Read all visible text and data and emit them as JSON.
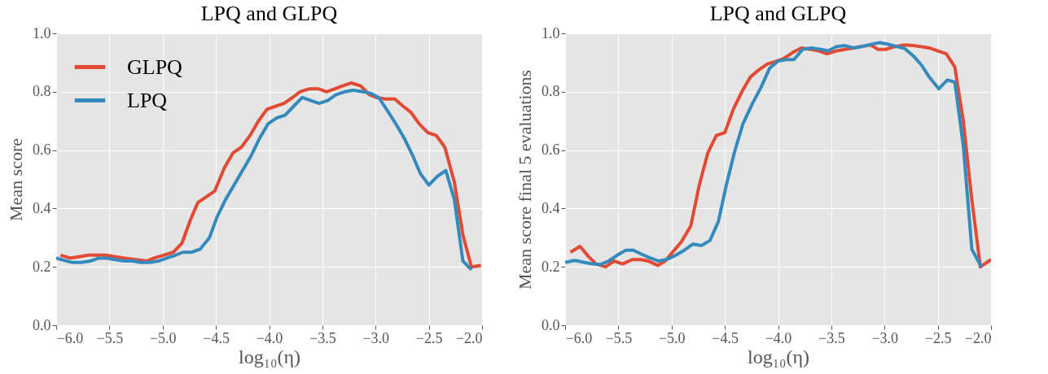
{
  "chart_data": [
    {
      "type": "line",
      "title": "LPQ and GLPQ",
      "xlabel": "log₁₀(η)",
      "ylabel": "Mean score",
      "legend": "top left",
      "grid": true,
      "line_style": "solid",
      "marker": "none",
      "xlim": [
        -6,
        -2
      ],
      "ylim": [
        0,
        1
      ],
      "xticks": [
        {
          "value": -6,
          "label": "−6.0"
        },
        {
          "value": -5.5,
          "label": "−5.5"
        },
        {
          "value": -5,
          "label": "−5.0"
        },
        {
          "value": -4.5,
          "label": "−4.5"
        },
        {
          "value": -4,
          "label": "−4.0"
        },
        {
          "value": -3.5,
          "label": "−3.5"
        },
        {
          "value": -3,
          "label": "−3.0"
        },
        {
          "value": -2.5,
          "label": "−2.5"
        },
        {
          "value": -2,
          "label": "−2.0"
        }
      ],
      "yticks": [
        {
          "value": 0,
          "label": "0.0"
        },
        {
          "value": 0.2,
          "label": "0.2"
        },
        {
          "value": 0.4,
          "label": "0.4"
        },
        {
          "value": 0.6,
          "label": "0.6"
        },
        {
          "value": 0.8,
          "label": "0.8"
        },
        {
          "value": 1,
          "label": "1.0"
        }
      ],
      "series": [
        {
          "name": "GLPQ",
          "color": "#e24a33",
          "x": [
            -5.96,
            -5.87,
            -5.69,
            -5.54,
            -5.36,
            -5.15,
            -5.08,
            -4.99,
            -4.9,
            -4.82,
            -4.74,
            -4.67,
            -4.59,
            -4.51,
            -4.42,
            -4.34,
            -4.26,
            -4.18,
            -4.1,
            -4.02,
            -3.94,
            -3.86,
            -3.78,
            -3.71,
            -3.62,
            -3.54,
            -3.46,
            -3.38,
            -3.31,
            -3.23,
            -3.14,
            -3.06,
            -2.99,
            -2.91,
            -2.82,
            -2.74,
            -2.67,
            -2.59,
            -2.51,
            -2.43,
            -2.35,
            -2.26,
            -2.18,
            -2.1,
            -2.01
          ],
          "values": [
            0.24,
            0.23,
            0.24,
            0.24,
            0.23,
            0.22,
            0.23,
            0.24,
            0.25,
            0.28,
            0.36,
            0.42,
            0.44,
            0.46,
            0.54,
            0.59,
            0.61,
            0.65,
            0.7,
            0.74,
            0.75,
            0.76,
            0.78,
            0.8,
            0.81,
            0.81,
            0.8,
            0.81,
            0.82,
            0.83,
            0.82,
            0.79,
            0.78,
            0.775,
            0.775,
            0.75,
            0.73,
            0.69,
            0.66,
            0.65,
            0.61,
            0.49,
            0.31,
            0.2,
            0.205
          ]
        },
        {
          "name": "LPQ",
          "color": "#348abd",
          "x": [
            -6,
            -5.85,
            -5.76,
            -5.68,
            -5.6,
            -5.53,
            -5.36,
            -5.28,
            -5.21,
            -5.12,
            -5.04,
            -4.96,
            -4.88,
            -4.81,
            -4.73,
            -4.65,
            -4.56,
            -4.49,
            -4.41,
            -4.33,
            -4.25,
            -4.17,
            -4.09,
            -4.01,
            -3.93,
            -3.85,
            -3.77,
            -3.69,
            -3.61,
            -3.53,
            -3.45,
            -3.37,
            -3.29,
            -3.21,
            -3.12,
            -3.05,
            -2.97,
            -2.88,
            -2.81,
            -2.73,
            -2.65,
            -2.58,
            -2.5,
            -2.42,
            -2.34,
            -2.26,
            -2.18,
            -2.1
          ],
          "values": [
            0.23,
            0.215,
            0.215,
            0.22,
            0.23,
            0.23,
            0.22,
            0.22,
            0.215,
            0.215,
            0.22,
            0.23,
            0.24,
            0.25,
            0.25,
            0.26,
            0.3,
            0.37,
            0.43,
            0.48,
            0.53,
            0.58,
            0.64,
            0.69,
            0.71,
            0.72,
            0.75,
            0.78,
            0.77,
            0.76,
            0.77,
            0.79,
            0.8,
            0.805,
            0.8,
            0.795,
            0.78,
            0.73,
            0.69,
            0.64,
            0.58,
            0.52,
            0.48,
            0.51,
            0.53,
            0.43,
            0.22,
            0.19
          ]
        }
      ]
    },
    {
      "type": "line",
      "title": "LPQ and GLPQ",
      "xlabel": "log₁₀(η)",
      "ylabel": "Mean score final 5 evaluations",
      "legend": "top left",
      "grid": true,
      "line_style": "solid",
      "marker": "none",
      "xlim": [
        -6,
        -2
      ],
      "ylim": [
        0,
        1
      ],
      "xticks": [
        {
          "value": -6,
          "label": "−6.0"
        },
        {
          "value": -5.5,
          "label": "−5.5"
        },
        {
          "value": -5,
          "label": "−5.0"
        },
        {
          "value": -4.5,
          "label": "−4.5"
        },
        {
          "value": -4,
          "label": "−4.0"
        },
        {
          "value": -3.5,
          "label": "−3.5"
        },
        {
          "value": -3,
          "label": "−3.0"
        },
        {
          "value": -2.5,
          "label": "−2.5"
        },
        {
          "value": -2,
          "label": "−2.0"
        }
      ],
      "yticks": [
        {
          "value": 0,
          "label": "0.0"
        },
        {
          "value": 0.2,
          "label": "0.2"
        },
        {
          "value": 0.4,
          "label": "0.4"
        },
        {
          "value": 0.6,
          "label": "0.6"
        },
        {
          "value": 0.8,
          "label": "0.8"
        },
        {
          "value": 1,
          "label": "1.0"
        }
      ],
      "series": [
        {
          "name": "GLPQ",
          "color": "#e24a33",
          "x": [
            -5.95,
            -5.86,
            -5.78,
            -5.71,
            -5.62,
            -5.54,
            -5.46,
            -5.37,
            -5.29,
            -5.22,
            -5.13,
            -5.06,
            -4.98,
            -4.91,
            -4.82,
            -4.74,
            -4.66,
            -4.58,
            -4.5,
            -4.42,
            -4.34,
            -4.26,
            -4.18,
            -4.1,
            -4.01,
            -3.94,
            -3.86,
            -3.78,
            -3.69,
            -3.62,
            -3.54,
            -3.45,
            -3.37,
            -3.29,
            -3.22,
            -3.13,
            -3.06,
            -2.99,
            -2.9,
            -2.82,
            -2.73,
            -2.65,
            -2.58,
            -2.5,
            -2.42,
            -2.34,
            -2.26,
            -2.18,
            -2.1,
            -2
          ],
          "values": [
            0.25,
            0.27,
            0.235,
            0.21,
            0.2,
            0.22,
            0.21,
            0.225,
            0.225,
            0.22,
            0.205,
            0.22,
            0.255,
            0.285,
            0.34,
            0.48,
            0.59,
            0.65,
            0.66,
            0.74,
            0.8,
            0.85,
            0.875,
            0.895,
            0.905,
            0.915,
            0.935,
            0.95,
            0.945,
            0.94,
            0.93,
            0.94,
            0.945,
            0.95,
            0.955,
            0.96,
            0.945,
            0.945,
            0.955,
            0.96,
            0.958,
            0.954,
            0.95,
            0.94,
            0.93,
            0.885,
            0.7,
            0.43,
            0.2,
            0.225
          ]
        },
        {
          "name": "LPQ",
          "color": "#348abd",
          "x": [
            -6,
            -5.91,
            -5.82,
            -5.74,
            -5.67,
            -5.59,
            -5.51,
            -5.43,
            -5.36,
            -5.28,
            -5.2,
            -5.12,
            -5.04,
            -4.96,
            -4.88,
            -4.8,
            -4.72,
            -4.64,
            -4.56,
            -4.49,
            -4.41,
            -4.33,
            -4.24,
            -4.16,
            -4.08,
            -4,
            -3.92,
            -3.85,
            -3.77,
            -3.69,
            -3.6,
            -3.53,
            -3.45,
            -3.37,
            -3.29,
            -3.21,
            -3.13,
            -3.05,
            -2.97,
            -2.89,
            -2.81,
            -2.73,
            -2.65,
            -2.58,
            -2.49,
            -2.41,
            -2.34,
            -2.26,
            -2.18,
            -2.09
          ],
          "values": [
            0.215,
            0.222,
            0.215,
            0.21,
            0.208,
            0.22,
            0.24,
            0.257,
            0.257,
            0.243,
            0.23,
            0.22,
            0.226,
            0.24,
            0.257,
            0.278,
            0.273,
            0.29,
            0.356,
            0.474,
            0.592,
            0.69,
            0.76,
            0.815,
            0.88,
            0.905,
            0.91,
            0.91,
            0.945,
            0.95,
            0.945,
            0.94,
            0.955,
            0.958,
            0.95,
            0.955,
            0.962,
            0.968,
            0.963,
            0.955,
            0.948,
            0.923,
            0.89,
            0.85,
            0.81,
            0.84,
            0.833,
            0.615,
            0.26,
            0.2
          ]
        }
      ]
    }
  ]
}
